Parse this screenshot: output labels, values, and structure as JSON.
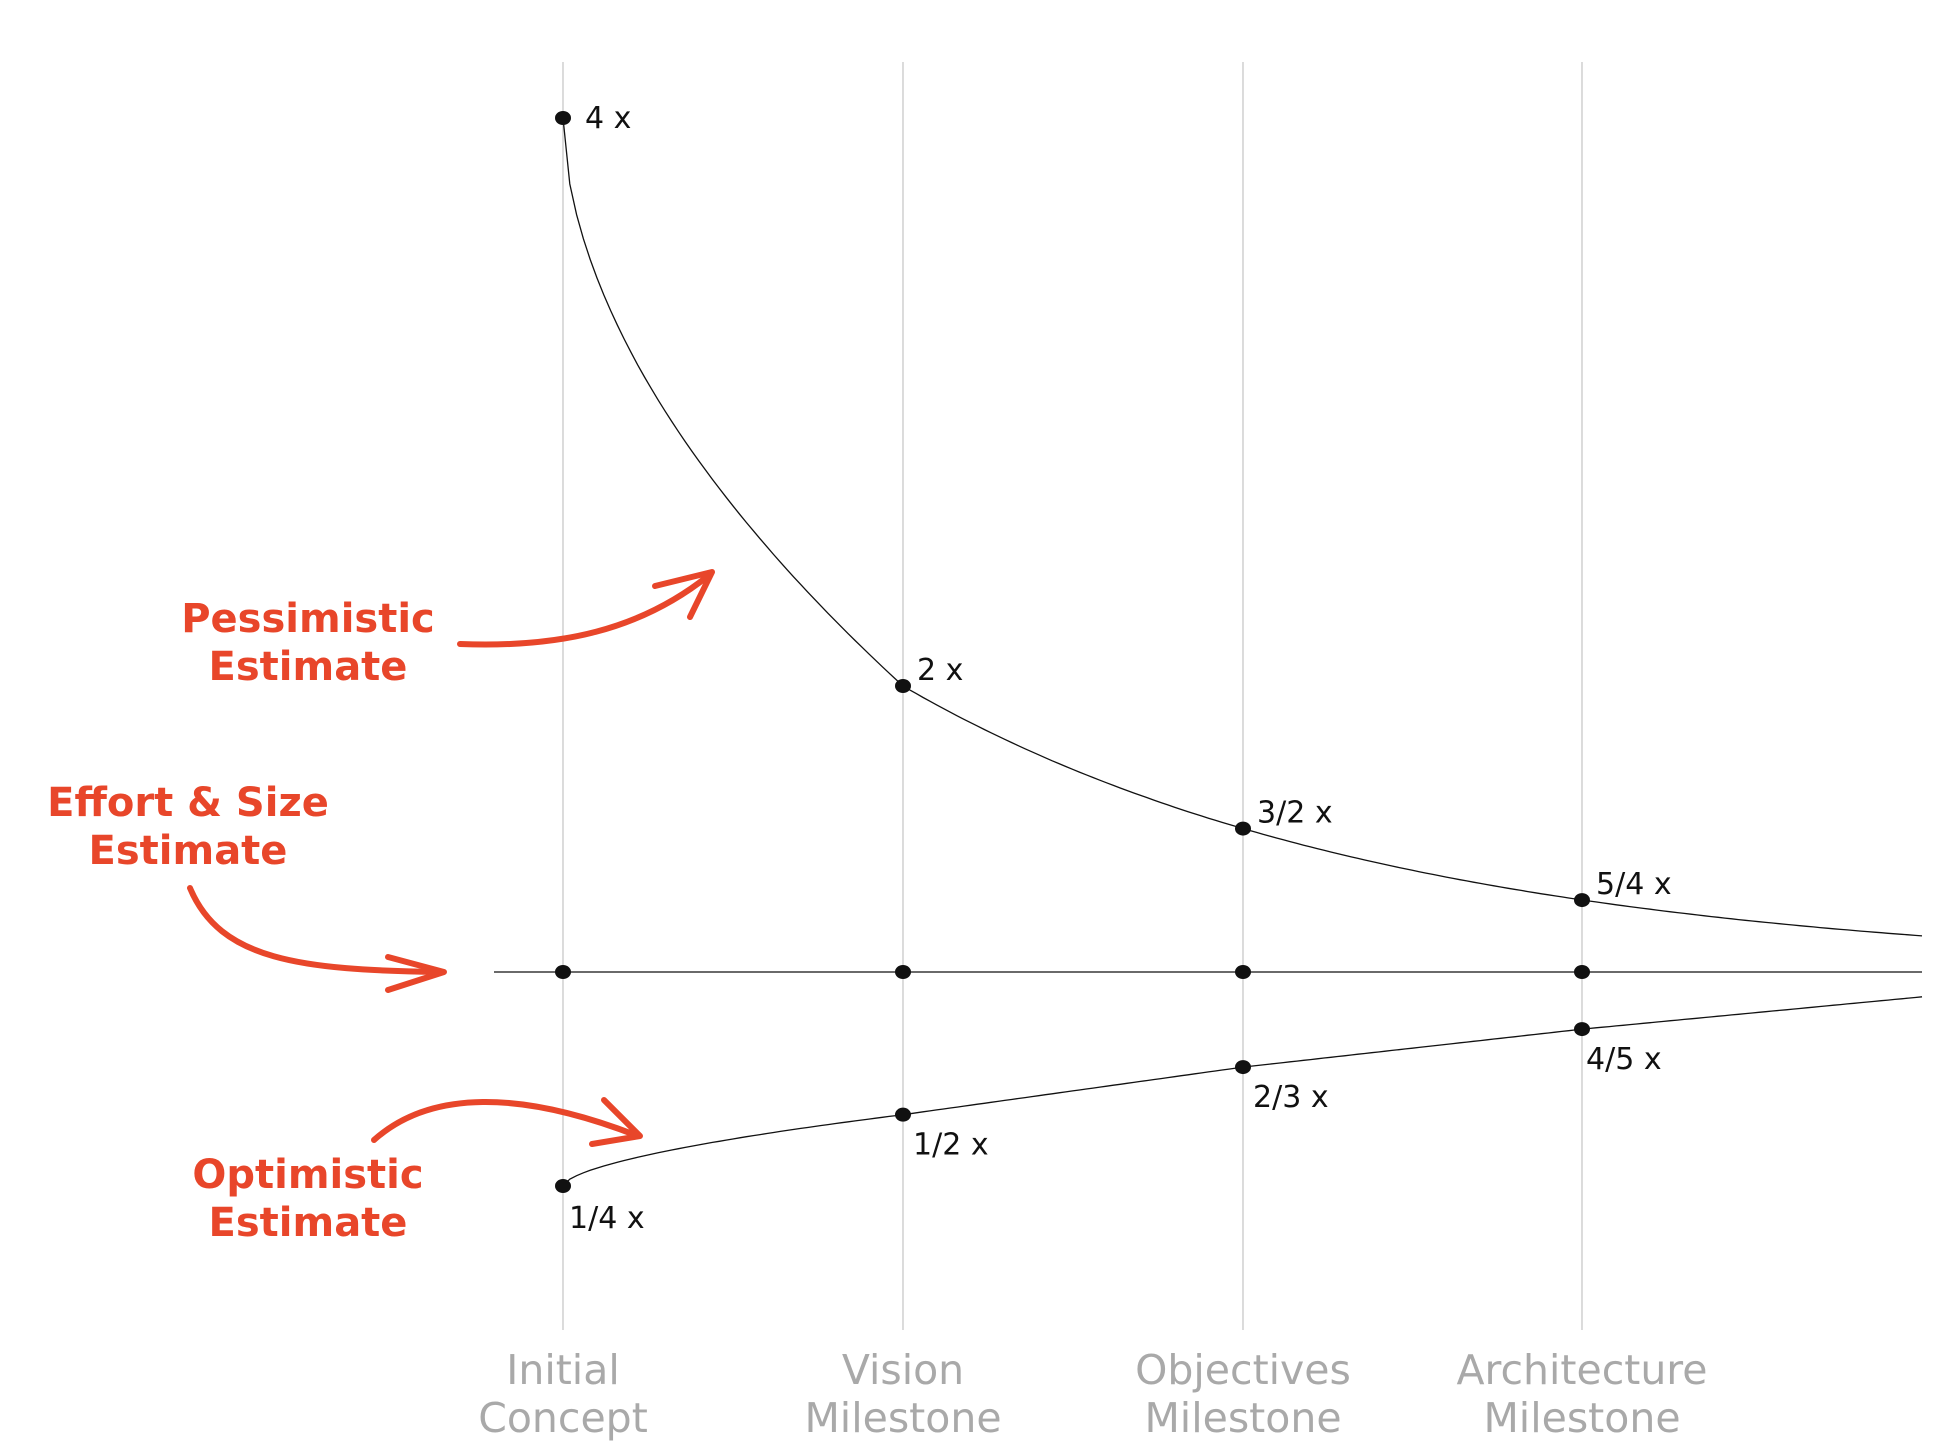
{
  "chart_data": {
    "type": "line",
    "categories": [
      [
        "Initial",
        "Concept"
      ],
      [
        "Vision",
        "Milestone"
      ],
      [
        "Objectives",
        "Milestone"
      ],
      [
        "Architecture",
        "Milestone"
      ]
    ],
    "series": [
      {
        "values": [
          4,
          2,
          1.5,
          1.25
        ],
        "labels": [
          "4 x",
          "2 x",
          "3/2 x",
          "5/4 x"
        ]
      },
      {
        "values": [
          1,
          1,
          1,
          1
        ]
      },
      {
        "values": [
          0.25,
          0.5,
          0.6667,
          0.8
        ],
        "labels": [
          "1/4 x",
          "1/2 x",
          "2/3 x",
          "4/5 x"
        ]
      }
    ],
    "annotations": [
      {
        "lines": [
          "Pessimistic",
          "Estimate"
        ]
      },
      {
        "lines": [
          "Effort & Size",
          "Estimate"
        ]
      },
      {
        "lines": [
          "Optimistic",
          "Estimate"
        ]
      }
    ],
    "grid": true,
    "legend": "none"
  },
  "colors": {
    "annotation": "#e8462a",
    "curve": "#111111",
    "gridline": "#c8c8c8",
    "milestone_text": "#a9a9a9"
  }
}
